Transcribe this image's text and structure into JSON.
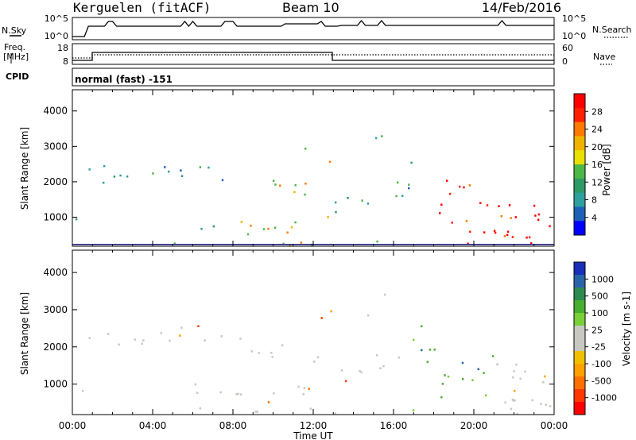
{
  "header": {
    "station": "Kerguelen (fitACF)",
    "beam": "Beam 10",
    "date": "14/Feb/2016"
  },
  "nsky_panel": {
    "left_label": "N.Sky",
    "right_label": "N.Search",
    "ticks_left": [
      "10^5",
      "10^0"
    ],
    "ticks_right": [
      "10^5",
      "10^0"
    ]
  },
  "freq_panel": {
    "left_label_1": "Freq.",
    "left_label_2": "[MHz]",
    "left_ticks": [
      "18",
      "8"
    ],
    "right_label": "Nave",
    "right_ticks": [
      "60",
      "0"
    ],
    "cpid_label": "CPID",
    "cpid_text": "normal (fast) -151"
  },
  "chart_data": [
    {
      "type": "heatmap",
      "name": "power",
      "ylabel": "Slant Range [km]",
      "yticks": [
        "4000",
        "3000",
        "2000",
        "1000"
      ],
      "ylim": [
        180,
        4600
      ],
      "xlim": [
        0,
        24
      ],
      "colorbar_label": "Power [dB]",
      "colorbar_ticks": [
        "28",
        "24",
        "20",
        "16",
        "12",
        "8",
        "4"
      ],
      "colorbar_colors": [
        "#ff0000",
        "#ff2000",
        "#ff7a00",
        "#f0b400",
        "#e8e000",
        "#4cb848",
        "#2e9a66",
        "#2ea0a0",
        "#1e60b8",
        "#0000ff"
      ]
    },
    {
      "type": "heatmap",
      "name": "velocity",
      "ylabel": "Slant Range [km]",
      "yticks": [
        "4000",
        "3000",
        "2000",
        "1000"
      ],
      "ylim": [
        180,
        4600
      ],
      "xlim": [
        0,
        24
      ],
      "xticks": [
        "00:00",
        "04:00",
        "08:00",
        "12:00",
        "16:00",
        "20:00",
        "00:00"
      ],
      "xlabel": "Time UT",
      "colorbar_label": "Velocity [m s-1]",
      "colorbar_ticks": [
        "1000",
        "500",
        "100",
        "25",
        "-25",
        "-100",
        "-500",
        "-1000"
      ],
      "colorbar_colors": [
        "#1a30b8",
        "#2a64a8",
        "#2e8a50",
        "#48b030",
        "#7ad038",
        "#c8c8c0",
        "#c8c8c0",
        "#f0c000",
        "#ffa000",
        "#ff7000",
        "#ff3800",
        "#ff0000"
      ]
    }
  ]
}
